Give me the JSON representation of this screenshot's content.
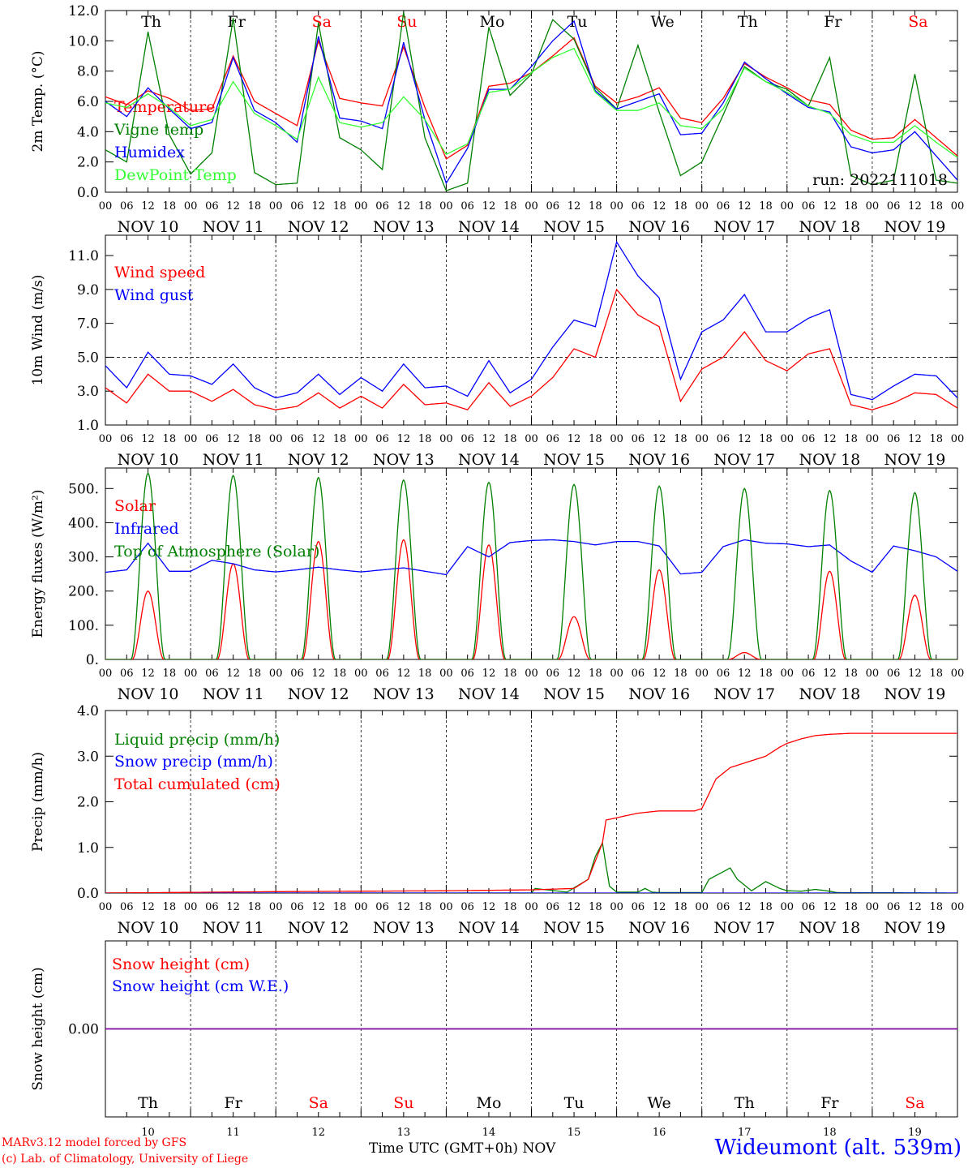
{
  "days": [
    {
      "abbr": "Th",
      "date": "NOV 10",
      "num": "10",
      "weekend": false
    },
    {
      "abbr": "Fr",
      "date": "NOV 11",
      "num": "11",
      "weekend": false
    },
    {
      "abbr": "Sa",
      "date": "NOV 12",
      "num": "12",
      "weekend": true
    },
    {
      "abbr": "Su",
      "date": "NOV 13",
      "num": "13",
      "weekend": true
    },
    {
      "abbr": "Mo",
      "date": "NOV 14",
      "num": "14",
      "weekend": false
    },
    {
      "abbr": "Tu",
      "date": "NOV 15",
      "num": "15",
      "weekend": false
    },
    {
      "abbr": "We",
      "date": "NOV 16",
      "num": "16",
      "weekend": false
    },
    {
      "abbr": "Th",
      "date": "NOV 17",
      "num": "17",
      "weekend": false
    },
    {
      "abbr": "Fr",
      "date": "NOV 18",
      "num": "18",
      "weekend": false
    },
    {
      "abbr": "Sa",
      "date": "NOV 19",
      "num": "19",
      "weekend": true
    }
  ],
  "hour_ticks": [
    "00",
    "06",
    "12",
    "18"
  ],
  "colors": {
    "red": "#ff0000",
    "darkgreen": "#008000",
    "blue": "#0000ff",
    "lightgreen": "#33ff33",
    "purple": "#8000a0"
  },
  "run_label": "run: 2022111018",
  "footer": {
    "model": "MARv3.12 model forced by GFS",
    "copyright": "(c) Lab. of Climatology, University of Liege",
    "time_axis": "Time UTC (GMT+0h) NOV",
    "station": "Wideumont (alt. 539m)"
  },
  "chart_data": [
    {
      "type": "line",
      "ylabel": "2m Temp. (°C)",
      "ylim": [
        0,
        12
      ],
      "yticks": [
        "0.0",
        "2.0",
        "4.0",
        "6.0",
        "8.0",
        "10.0",
        "12.0"
      ],
      "ytick_values": [
        0,
        2,
        4,
        6,
        8,
        10,
        12
      ],
      "x_unit": "hours since NOV 10 00 UTC",
      "series": [
        {
          "name": "Temperature",
          "color": "#ff0000",
          "x": [
            0,
            6,
            12,
            18,
            24,
            30,
            36,
            42,
            48,
            54,
            60,
            66,
            72,
            78,
            84,
            90,
            96,
            102,
            108,
            114,
            120,
            126,
            132,
            138,
            144,
            150,
            156,
            162,
            168,
            174,
            180,
            186,
            192,
            198,
            204,
            210,
            216,
            222,
            228,
            234,
            240
          ],
          "y": [
            6.3,
            5.8,
            6.7,
            6.2,
            5.4,
            5.5,
            9.0,
            6.0,
            5.2,
            4.4,
            10.0,
            6.2,
            5.9,
            5.7,
            9.6,
            5.6,
            2.2,
            3.1,
            7.0,
            7.2,
            7.9,
            9.0,
            10.2,
            7.0,
            5.9,
            6.3,
            6.9,
            4.9,
            4.6,
            6.2,
            8.5,
            7.6,
            6.9,
            6.1,
            5.8,
            4.1,
            3.5,
            3.6,
            4.8,
            3.6,
            2.4
          ]
        },
        {
          "name": "Vigne temp",
          "color": "#008000",
          "x": [
            0,
            6,
            12,
            18,
            24,
            30,
            36,
            42,
            48,
            54,
            60,
            66,
            72,
            78,
            84,
            90,
            96,
            102,
            108,
            114,
            120,
            126,
            132,
            138,
            144,
            150,
            156,
            162,
            168,
            174,
            180,
            186,
            192,
            198,
            204,
            210,
            216,
            222,
            228,
            234,
            240
          ],
          "y": [
            2.8,
            2.0,
            10.6,
            3.8,
            1.2,
            2.6,
            11.5,
            1.3,
            0.5,
            0.6,
            11.2,
            3.6,
            2.8,
            1.5,
            11.9,
            3.6,
            0.1,
            0.6,
            10.9,
            6.4,
            7.8,
            11.4,
            10.1,
            6.9,
            5.5,
            9.7,
            5.3,
            1.1,
            2.0,
            5.1,
            8.3,
            7.3,
            6.8,
            5.7,
            8.9,
            1.1,
            0.5,
            0.8,
            7.8,
            0.8,
            0.6
          ]
        },
        {
          "name": "Humidex",
          "color": "#0000ff",
          "x": [
            0,
            6,
            12,
            18,
            24,
            30,
            36,
            42,
            48,
            54,
            60,
            66,
            72,
            78,
            84,
            90,
            96,
            102,
            108,
            114,
            120,
            126,
            132,
            138,
            144,
            150,
            156,
            162,
            168,
            174,
            180,
            186,
            192,
            198,
            204,
            210,
            216,
            222,
            228,
            234,
            240
          ],
          "y": [
            6.0,
            5.0,
            6.9,
            5.5,
            4.2,
            4.6,
            8.9,
            5.4,
            4.6,
            3.3,
            10.3,
            4.9,
            4.7,
            4.2,
            9.9,
            4.8,
            0.6,
            2.9,
            6.8,
            6.8,
            8.3,
            10.0,
            11.3,
            6.7,
            5.5,
            6.0,
            6.5,
            3.8,
            3.9,
            5.9,
            8.6,
            7.5,
            6.5,
            5.6,
            5.3,
            3.0,
            2.6,
            2.8,
            4.0,
            2.4,
            0.8
          ]
        },
        {
          "name": "DewPoint Temp",
          "color": "#33ff33",
          "x": [
            0,
            6,
            12,
            18,
            24,
            30,
            36,
            42,
            48,
            54,
            60,
            66,
            72,
            78,
            84,
            90,
            96,
            102,
            108,
            114,
            120,
            126,
            132,
            138,
            144,
            150,
            156,
            162,
            168,
            174,
            180,
            186,
            192,
            198,
            204,
            210,
            216,
            222,
            228,
            234,
            240
          ],
          "y": [
            5.9,
            5.6,
            6.5,
            5.6,
            4.4,
            4.8,
            7.3,
            5.2,
            4.4,
            3.5,
            7.6,
            4.6,
            4.3,
            4.6,
            6.3,
            4.8,
            2.5,
            3.2,
            6.6,
            6.8,
            7.9,
            8.9,
            9.5,
            6.6,
            5.4,
            5.4,
            5.9,
            4.4,
            4.2,
            5.5,
            8.2,
            7.3,
            6.6,
            5.7,
            5.2,
            3.8,
            3.3,
            3.3,
            4.4,
            3.3,
            2.3
          ]
        }
      ]
    },
    {
      "type": "line",
      "ylabel": "10m Wind (m/s)",
      "ylim": [
        1,
        12.2
      ],
      "yticks": [
        "1.0",
        "3.0",
        "5.0",
        "7.0",
        "9.0",
        "11.0"
      ],
      "ytick_values": [
        1,
        3,
        5,
        7,
        9,
        11
      ],
      "refline": 5.0,
      "x_unit": "hours since NOV 10 00 UTC",
      "series": [
        {
          "name": "Wind speed",
          "color": "#ff0000",
          "x": [
            0,
            6,
            12,
            18,
            24,
            30,
            36,
            42,
            48,
            54,
            60,
            66,
            72,
            78,
            84,
            90,
            96,
            102,
            108,
            114,
            120,
            126,
            132,
            138,
            144,
            150,
            156,
            162,
            168,
            174,
            180,
            186,
            192,
            198,
            204,
            210,
            216,
            222,
            228,
            234,
            240
          ],
          "y": [
            3.2,
            2.3,
            4.0,
            3.0,
            3.0,
            2.4,
            3.1,
            2.2,
            1.9,
            2.1,
            2.9,
            2.0,
            2.7,
            2.0,
            3.4,
            2.2,
            2.3,
            1.9,
            3.5,
            2.1,
            2.7,
            3.8,
            5.5,
            5.0,
            9.0,
            7.5,
            6.8,
            2.4,
            4.3,
            5.0,
            6.5,
            4.8,
            4.2,
            5.2,
            5.5,
            2.2,
            1.9,
            2.3,
            2.9,
            2.8,
            2.0
          ]
        },
        {
          "name": "Wind gust",
          "color": "#0000ff",
          "x": [
            0,
            6,
            12,
            18,
            24,
            30,
            36,
            42,
            48,
            54,
            60,
            66,
            72,
            78,
            84,
            90,
            96,
            102,
            108,
            114,
            120,
            126,
            132,
            138,
            144,
            150,
            156,
            162,
            168,
            174,
            180,
            186,
            192,
            198,
            204,
            210,
            216,
            222,
            228,
            234,
            240
          ],
          "y": [
            4.5,
            3.2,
            5.3,
            4.0,
            3.9,
            3.4,
            4.6,
            3.2,
            2.6,
            2.9,
            4.0,
            2.8,
            3.8,
            3.0,
            4.6,
            3.2,
            3.3,
            2.7,
            4.8,
            2.9,
            3.7,
            5.6,
            7.2,
            6.8,
            11.8,
            9.8,
            8.5,
            3.7,
            6.5,
            7.2,
            8.7,
            6.5,
            6.5,
            7.3,
            7.8,
            2.8,
            2.5,
            3.3,
            4.0,
            3.9,
            2.6
          ]
        }
      ]
    },
    {
      "type": "line",
      "ylabel": "Energy fluxes (W/m²)",
      "ylim": [
        0,
        560
      ],
      "yticks": [
        "0.",
        "100.",
        "200.",
        "300.",
        "400.",
        "500."
      ],
      "ytick_values": [
        0,
        100,
        200,
        300,
        400,
        500
      ],
      "x_unit": "hours since NOV 10 00 UTC",
      "series": [
        {
          "name": "Solar",
          "color": "#ff0000",
          "kind": "daily_bell",
          "peaks": [
            200,
            280,
            345,
            350,
            335,
            125,
            262,
            20,
            258,
            188
          ],
          "center_hour": 12,
          "halfwidth_hours": 4.5
        },
        {
          "name": "Infrared",
          "color": "#0000ff",
          "x": [
            0,
            6,
            12,
            18,
            24,
            30,
            36,
            42,
            48,
            54,
            60,
            66,
            72,
            78,
            84,
            90,
            96,
            102,
            108,
            114,
            120,
            126,
            132,
            138,
            144,
            150,
            156,
            162,
            168,
            174,
            180,
            186,
            192,
            198,
            204,
            210,
            216,
            222,
            228,
            234,
            240
          ],
          "y": [
            255,
            262,
            340,
            258,
            258,
            290,
            280,
            262,
            256,
            262,
            270,
            262,
            256,
            262,
            268,
            258,
            248,
            330,
            300,
            342,
            348,
            350,
            345,
            335,
            345,
            345,
            332,
            250,
            255,
            330,
            350,
            340,
            338,
            330,
            335,
            288,
            255,
            332,
            318,
            300,
            258
          ]
        },
        {
          "name": "Top of Atmosphere (Solar)",
          "color": "#008000",
          "kind": "daily_bell",
          "peaks": [
            545,
            538,
            532,
            525,
            518,
            512,
            507,
            500,
            494,
            488
          ],
          "center_hour": 12,
          "halfwidth_hours": 4.8
        }
      ]
    },
    {
      "type": "line",
      "ylabel": "Precip (mm/h)",
      "ylim": [
        0,
        4.0
      ],
      "yticks": [
        "0.0",
        "1.0",
        "2.0",
        "3.0",
        "4.0"
      ],
      "ytick_values": [
        0,
        1,
        2,
        3,
        4
      ],
      "x_unit": "hours since NOV 10 00 UTC",
      "series": [
        {
          "name": "Liquid precip (mm/h)",
          "color": "#008000",
          "x": [
            0,
            120,
            121,
            130,
            136,
            138,
            140,
            141,
            142,
            144,
            150,
            152,
            154,
            156,
            168,
            170,
            176,
            178,
            182,
            186,
            190,
            192,
            196,
            200,
            204,
            206,
            240
          ],
          "y": [
            0,
            0,
            0.1,
            0.02,
            0.3,
            0.8,
            1.1,
            0.6,
            0.15,
            0.02,
            0.02,
            0.1,
            0.02,
            0.01,
            0.01,
            0.3,
            0.55,
            0.3,
            0.05,
            0.25,
            0.1,
            0.05,
            0.04,
            0.08,
            0.04,
            0.01,
            0
          ]
        },
        {
          "name": "Snow precip (mm/h)",
          "color": "#0000ff",
          "x": [
            0,
            240
          ],
          "y": [
            0,
            0
          ]
        },
        {
          "name": "Total cumulated (cm)",
          "color": "#ff0000",
          "x": [
            0,
            48,
            96,
            120,
            132,
            136,
            140,
            141,
            144,
            150,
            156,
            166,
            168,
            172,
            176,
            180,
            186,
            190,
            192,
            196,
            200,
            204,
            210,
            240
          ],
          "y": [
            0,
            0.03,
            0.05,
            0.07,
            0.1,
            0.3,
            1.1,
            1.6,
            1.65,
            1.75,
            1.8,
            1.8,
            1.85,
            2.5,
            2.75,
            2.85,
            3.0,
            3.2,
            3.28,
            3.38,
            3.45,
            3.48,
            3.5,
            3.5
          ]
        }
      ]
    },
    {
      "type": "line",
      "ylabel": "Snow height (cm)",
      "ylim": [
        -1,
        1
      ],
      "yticks": [
        "0.00"
      ],
      "ytick_values": [
        0
      ],
      "x_unit": "hours since NOV 10 00 UTC",
      "series": [
        {
          "name": "Snow height (cm)",
          "color": "#ff0000",
          "x": [
            0,
            240
          ],
          "y": [
            0,
            0
          ]
        },
        {
          "name": "Snow height (cm W.E.)",
          "color": "#0000ff",
          "x": [
            0,
            240
          ],
          "y": [
            0,
            0
          ]
        }
      ]
    }
  ]
}
